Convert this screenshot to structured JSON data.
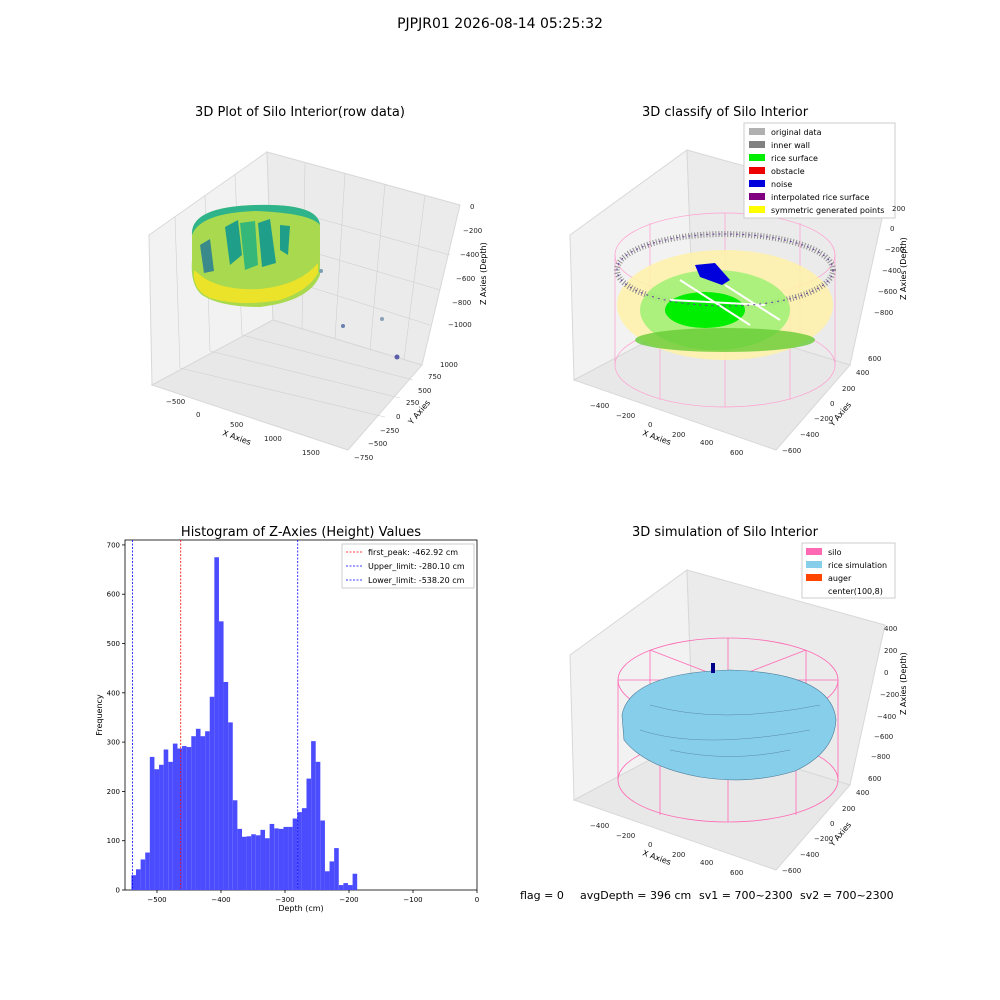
{
  "figure": {
    "suptitle": "PJPJR01 2026-08-14 05:25:32",
    "status": {
      "flag": "flag = 0",
      "avg_depth": "avgDepth = 396 cm",
      "sv1": "sv1 = 700~2300",
      "sv2": "sv2 = 700~2300"
    }
  },
  "chart_data": [
    {
      "type": "scatter",
      "subtype": "3d-scatter",
      "title": "3D Plot of Silo Interior(row data)",
      "xlabel": "X Axies",
      "ylabel": "Y Axies",
      "zlabel": "Z Axies (Depth)",
      "xticks": [
        "−500",
        "0",
        "500",
        "1000",
        "1500"
      ],
      "yticks": [
        "−750",
        "−500",
        "−250",
        "0",
        "250",
        "500",
        "750",
        "1000"
      ],
      "zticks": [
        "0",
        "−200",
        "−400",
        "−600",
        "−800",
        "−1000"
      ],
      "colormap": "viridis",
      "grid": true,
      "description_points": "dense cylindrical band of points (silo wall and rice surface) colored by depth; four outlier points"
    },
    {
      "type": "scatter",
      "subtype": "3d-scatter",
      "title": "3D classify of Silo Interior",
      "xlabel": "X Axies",
      "ylabel": "Y Axies",
      "zlabel": "Z Axies (Depth)",
      "xticks": [
        "−400",
        "−200",
        "0",
        "200",
        "400",
        "600"
      ],
      "yticks": [
        "−600",
        "−400",
        "−200",
        "0",
        "200",
        "400",
        "600"
      ],
      "zticks": [
        "200",
        "0",
        "−200",
        "−400",
        "−600",
        "−800"
      ],
      "grid": true,
      "legend_position": "top-right",
      "legend": [
        {
          "label": "original data",
          "color": "#b0b0b0"
        },
        {
          "label": "inner wall",
          "color": "#808080"
        },
        {
          "label": "rice surface",
          "color": "#00ee00"
        },
        {
          "label": "obstacle",
          "color": "#ee0000"
        },
        {
          "label": "noise",
          "color": "#0000dd"
        },
        {
          "label": "interpolated rice surface",
          "color": "#800080"
        },
        {
          "label": "symmetric generated points",
          "color": "#ffff00"
        }
      ]
    },
    {
      "type": "bar",
      "subtype": "histogram",
      "title": "Histogram of Z-Axies (Height) Values",
      "xlabel": "Depth (cm)",
      "ylabel": "Frequency",
      "xlim": [
        -550,
        0
      ],
      "ylim": [
        0,
        710
      ],
      "xticks": [
        -500,
        -400,
        -300,
        -200,
        -100,
        0
      ],
      "yticks": [
        0,
        100,
        200,
        300,
        400,
        500,
        600,
        700
      ],
      "bar_color": "#4c4cff",
      "bin_width": 7.2,
      "bin_start": -540,
      "values": [
        30,
        42,
        62,
        76,
        270,
        245,
        254,
        285,
        260,
        297,
        287,
        292,
        290,
        312,
        327,
        312,
        322,
        392,
        675,
        545,
        422,
        340,
        182,
        124,
        108,
        109,
        113,
        111,
        122,
        105,
        134,
        125,
        124,
        128,
        128,
        145,
        158,
        166,
        226,
        302,
        260,
        141,
        38,
        58,
        85,
        10,
        14,
        10,
        33
      ],
      "vlines": [
        {
          "label": "first_peak: -462.92 cm",
          "x": -462.92,
          "color": "#ff0000"
        },
        {
          "label": "Upper_limit: -280.10 cm",
          "x": -280.1,
          "color": "#0000ff"
        },
        {
          "label": "Lower_limit: -538.20 cm",
          "x": -538.2,
          "color": "#0000ff"
        }
      ],
      "legend_position": "top-right"
    },
    {
      "type": "area",
      "subtype": "3d-surface",
      "title": "3D simulation of Silo Interior",
      "xlabel": "X Axies",
      "ylabel": "Y Axies",
      "zlabel": "Z Axies (Depth)",
      "xticks": [
        "−400",
        "−200",
        "0",
        "200",
        "400",
        "600"
      ],
      "yticks": [
        "−600",
        "−400",
        "−200",
        "0",
        "200",
        "400",
        "600"
      ],
      "zticks": [
        "400",
        "200",
        "0",
        "−200",
        "−400",
        "−600",
        "−800"
      ],
      "grid": true,
      "legend_position": "top-right",
      "legend": [
        {
          "label": "silo",
          "color": "#ff69b4"
        },
        {
          "label": "rice simulation",
          "color": "#87ceeb"
        },
        {
          "label": "auger",
          "color": "#ff4500"
        },
        {
          "label": "center(100,8)",
          "color": "none"
        }
      ]
    }
  ]
}
